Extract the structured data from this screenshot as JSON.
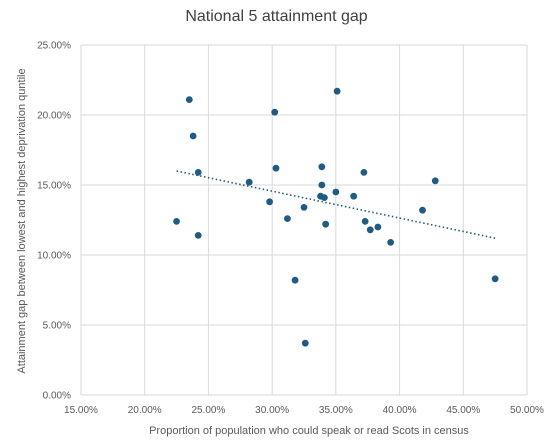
{
  "chart_data": {
    "type": "scatter",
    "title": "National 5 attainment gap",
    "xlabel": "Proportion of population who could speak or read Scots in census",
    "ylabel": "Attainment gap between lowest and highest deprivation quntile",
    "xlim": [
      0.15,
      0.5
    ],
    "ylim": [
      0.0,
      0.25
    ],
    "x_ticks": [
      "15.00%",
      "20.00%",
      "25.00%",
      "30.00%",
      "35.00%",
      "40.00%",
      "45.00%",
      "50.00%"
    ],
    "y_ticks": [
      "0.00%",
      "5.00%",
      "10.00%",
      "15.00%",
      "20.00%",
      "25.00%"
    ],
    "grid": true,
    "trendline": {
      "type": "linear",
      "style": "dotted",
      "x_start": 0.225,
      "y_start": 0.16,
      "x_end": 0.475,
      "y_end": 0.112
    },
    "marker_color": "#1f5b82",
    "points": [
      {
        "x": 0.225,
        "y": 0.124
      },
      {
        "x": 0.235,
        "y": 0.211
      },
      {
        "x": 0.238,
        "y": 0.185
      },
      {
        "x": 0.242,
        "y": 0.159
      },
      {
        "x": 0.242,
        "y": 0.114
      },
      {
        "x": 0.282,
        "y": 0.152
      },
      {
        "x": 0.298,
        "y": 0.138
      },
      {
        "x": 0.302,
        "y": 0.202
      },
      {
        "x": 0.303,
        "y": 0.162
      },
      {
        "x": 0.312,
        "y": 0.126
      },
      {
        "x": 0.318,
        "y": 0.082
      },
      {
        "x": 0.325,
        "y": 0.134
      },
      {
        "x": 0.326,
        "y": 0.037
      },
      {
        "x": 0.338,
        "y": 0.142
      },
      {
        "x": 0.339,
        "y": 0.163
      },
      {
        "x": 0.339,
        "y": 0.15
      },
      {
        "x": 0.341,
        "y": 0.141
      },
      {
        "x": 0.342,
        "y": 0.122
      },
      {
        "x": 0.35,
        "y": 0.145
      },
      {
        "x": 0.351,
        "y": 0.217
      },
      {
        "x": 0.364,
        "y": 0.142
      },
      {
        "x": 0.372,
        "y": 0.159
      },
      {
        "x": 0.373,
        "y": 0.124
      },
      {
        "x": 0.377,
        "y": 0.118
      },
      {
        "x": 0.383,
        "y": 0.12
      },
      {
        "x": 0.393,
        "y": 0.109
      },
      {
        "x": 0.418,
        "y": 0.132
      },
      {
        "x": 0.428,
        "y": 0.153
      },
      {
        "x": 0.475,
        "y": 0.083
      }
    ]
  }
}
